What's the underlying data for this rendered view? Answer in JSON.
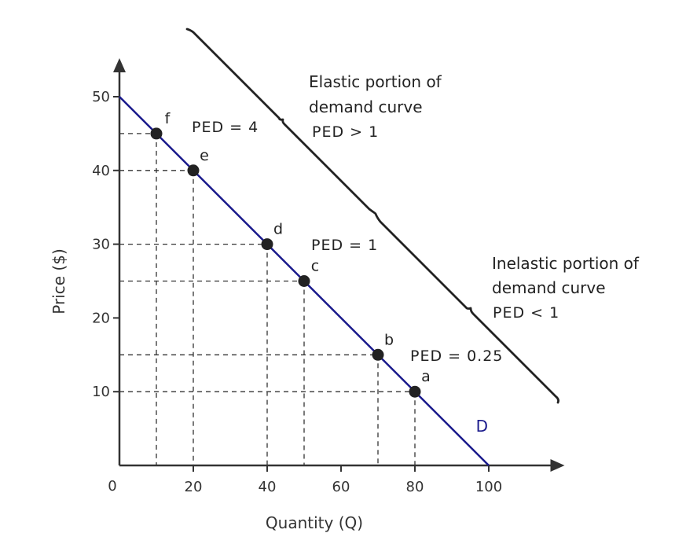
{
  "chart_data": {
    "type": "line",
    "xlabel": "Quantity (Q)",
    "ylabel": "Price ($)",
    "xlim": [
      0,
      115
    ],
    "ylim": [
      0,
      54
    ],
    "origin_label": "0",
    "x_ticks": [
      20,
      40,
      60,
      80,
      100
    ],
    "y_ticks": [
      10,
      20,
      30,
      40,
      50
    ],
    "grid": false,
    "series": [
      {
        "name": "D",
        "x": [
          0,
          100
        ],
        "y": [
          50,
          0
        ],
        "color": "#1a1a8c"
      }
    ],
    "points": [
      {
        "label": "f",
        "x": 10,
        "y": 45
      },
      {
        "label": "e",
        "x": 20,
        "y": 40
      },
      {
        "label": "d",
        "x": 40,
        "y": 30
      },
      {
        "label": "c",
        "x": 50,
        "y": 25
      },
      {
        "label": "b",
        "x": 70,
        "y": 15
      },
      {
        "label": "a",
        "x": 80,
        "y": 10
      }
    ],
    "annotations": {
      "ped_elastic": "PED = 4",
      "ped_unit": "PED = 1",
      "ped_inelastic": "PED = 0.25"
    },
    "regions": {
      "elastic": [
        "Elastic portion of",
        "demand curve",
        "PED > 1"
      ],
      "inelastic": [
        "Inelastic portion of",
        "demand curve",
        "PED < 1"
      ]
    },
    "colors": {
      "curve": "#1a1a8c",
      "axes": "#333333",
      "bracket": "#222222",
      "points": "#222222"
    }
  }
}
